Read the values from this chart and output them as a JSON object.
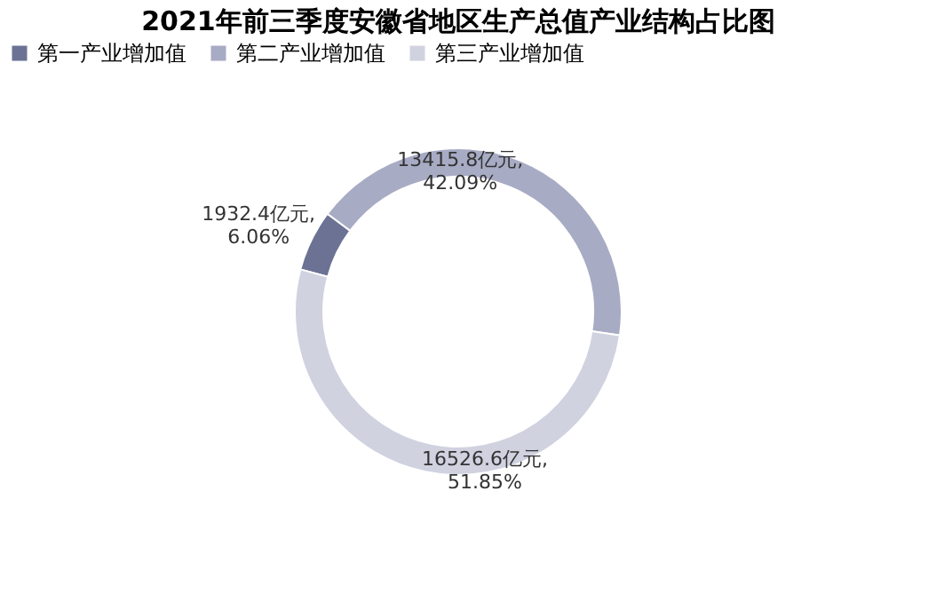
{
  "chart_data": {
    "type": "donut",
    "title": "2021年前三季度安徽省地区生产总值产业结构占比图",
    "categories": [
      "第一产业增加值",
      "第二产业增加值",
      "第三产业增加值"
    ],
    "values": [
      1932.4,
      13415.8,
      16526.6
    ],
    "value_labels": [
      "1932.4亿元,\n6.06%",
      "13415.8亿元,\n42.09%",
      "16526.6亿元,\n51.85%"
    ],
    "colors": [
      "#6b7294",
      "#a8abc4",
      "#d0d2e0"
    ],
    "legend": "top"
  }
}
